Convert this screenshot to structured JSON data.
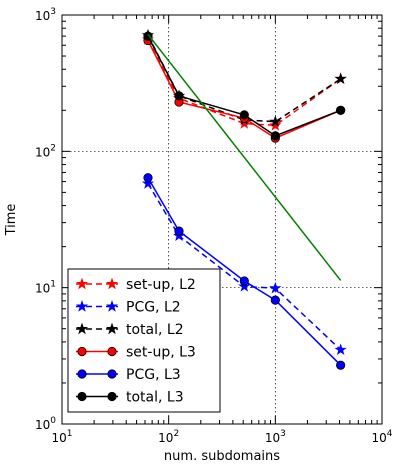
{
  "chart_data": {
    "type": "line",
    "xlabel": "num. subdomains",
    "ylabel": "Time",
    "xscale": "log",
    "yscale": "log",
    "xlim": [
      10,
      10000
    ],
    "ylim": [
      1,
      1000
    ],
    "grid": true,
    "legend_position": "bottom-left",
    "x_ticks": [
      {
        "value": 10,
        "base": "10",
        "exp": "1"
      },
      {
        "value": 100,
        "base": "10",
        "exp": "2"
      },
      {
        "value": 1000,
        "base": "10",
        "exp": "3"
      },
      {
        "value": 10000,
        "base": "10",
        "exp": "4"
      }
    ],
    "y_ticks": [
      {
        "value": 1,
        "base": "10",
        "exp": "0"
      },
      {
        "value": 10,
        "base": "10",
        "exp": "1"
      },
      {
        "value": 100,
        "base": "10",
        "exp": "2"
      },
      {
        "value": 1000,
        "base": "10",
        "exp": "3"
      }
    ],
    "series": [
      {
        "name": "set-up, L2",
        "color": "#ff0000",
        "dashed": true,
        "marker": "star",
        "in_legend": true,
        "x": [
          64,
          125,
          512,
          1000,
          4096
        ],
        "y": [
          660,
          245,
          160,
          155,
          340
        ]
      },
      {
        "name": "PCG, L2",
        "color": "#0000ff",
        "dashed": true,
        "marker": "star",
        "in_legend": true,
        "x": [
          64,
          125,
          512,
          1000,
          4096
        ],
        "y": [
          58,
          24,
          10.2,
          9.9,
          3.5
        ]
      },
      {
        "name": "total, L2",
        "color": "#000000",
        "dashed": true,
        "marker": "star",
        "in_legend": true,
        "x": [
          64,
          125,
          512,
          1000,
          4096
        ],
        "y": [
          710,
          255,
          170,
          165,
          340
        ]
      },
      {
        "name": "set-up, L3",
        "color": "#ff0000",
        "dashed": false,
        "marker": "circle",
        "in_legend": true,
        "x": [
          64,
          125,
          512,
          1000,
          4096
        ],
        "y": [
          650,
          230,
          175,
          125,
          200
        ]
      },
      {
        "name": "PCG, L3",
        "color": "#0000ff",
        "dashed": false,
        "marker": "circle",
        "in_legend": true,
        "x": [
          64,
          125,
          512,
          1000,
          4096
        ],
        "y": [
          64,
          26,
          11.2,
          8.1,
          2.7
        ]
      },
      {
        "name": "total, L3",
        "color": "#000000",
        "dashed": false,
        "marker": "circle",
        "in_legend": true,
        "x": [
          64,
          125,
          512,
          1000,
          4096
        ],
        "y": [
          700,
          255,
          185,
          130,
          200
        ]
      },
      {
        "color": "#008000",
        "dashed": false,
        "marker": "none",
        "in_legend": false,
        "x": [
          64,
          4096
        ],
        "y": [
          720,
          11.3
        ]
      }
    ]
  }
}
